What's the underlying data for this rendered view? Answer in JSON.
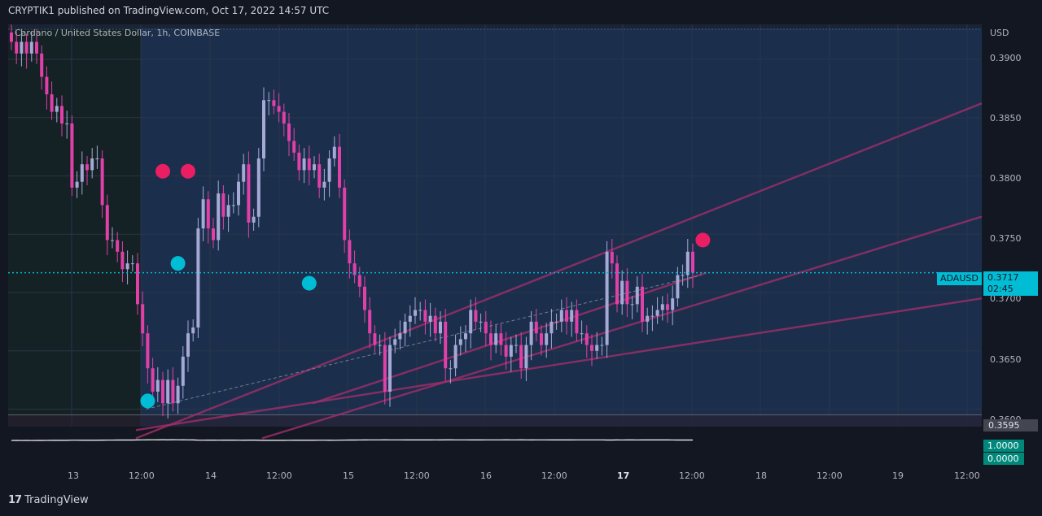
{
  "header": {
    "publisher": "CRYPTIK1 published on TradingView.com, Oct 17, 2022 14:57 UTC"
  },
  "symbol": {
    "label": "Cardano / United States Dollar, 1h, COINBASE"
  },
  "axis": {
    "currency": "USD",
    "y_ticks": [
      "0.3900",
      "0.3850",
      "0.3800",
      "0.3750",
      "0.3700",
      "0.3650",
      "0.3600"
    ],
    "x_ticks": [
      "13",
      "12:00",
      "14",
      "12:00",
      "15",
      "12:00",
      "16",
      "12:00",
      "17",
      "12:00",
      "18",
      "12:00",
      "19",
      "12:00"
    ]
  },
  "tags": {
    "ticker": "ADAUSD",
    "last_price": "0.3717",
    "countdown": "02:45",
    "low_price": "0.3595",
    "osc_high": "1.0000",
    "osc_low": "0.0000"
  },
  "footer": {
    "brand": "TradingView",
    "logo_glyph": "17"
  },
  "colors": {
    "up": "#a6a9d6",
    "down": "#e040a8",
    "trendline": "#a12e6a",
    "cyan": "#00bcd4",
    "signal_red": "#e91e63"
  },
  "chart_data": {
    "type": "candlestick",
    "title": "Cardano / United States Dollar, 1h, COINBASE",
    "ylabel": "USD",
    "ylim": [
      0.3585,
      0.393
    ],
    "current_price": 0.3717,
    "range_low": 0.3595,
    "closes": [
      0.3915,
      0.3905,
      0.3915,
      0.3905,
      0.3915,
      0.3905,
      0.3885,
      0.387,
      0.3855,
      0.386,
      0.3845,
      0.3845,
      0.379,
      0.3795,
      0.381,
      0.3805,
      0.3815,
      0.3815,
      0.3775,
      0.3745,
      0.3745,
      0.3735,
      0.372,
      0.3725,
      0.3725,
      0.369,
      0.3665,
      0.3635,
      0.3615,
      0.3625,
      0.3605,
      0.3625,
      0.3605,
      0.362,
      0.3645,
      0.3665,
      0.367,
      0.3755,
      0.378,
      0.3755,
      0.3745,
      0.3785,
      0.3765,
      0.3775,
      0.3775,
      0.3795,
      0.381,
      0.376,
      0.3765,
      0.3815,
      0.3865,
      0.3865,
      0.386,
      0.3855,
      0.3845,
      0.383,
      0.382,
      0.3805,
      0.3815,
      0.3805,
      0.381,
      0.379,
      0.3795,
      0.3815,
      0.3825,
      0.379,
      0.3745,
      0.3725,
      0.3715,
      0.3705,
      0.3685,
      0.3665,
      0.3655,
      0.3655,
      0.3615,
      0.3655,
      0.366,
      0.3665,
      0.3675,
      0.368,
      0.3685,
      0.3685,
      0.3675,
      0.368,
      0.3665,
      0.3675,
      0.3635,
      0.3635,
      0.3655,
      0.366,
      0.3665,
      0.3685,
      0.3675,
      0.3675,
      0.3665,
      0.3655,
      0.3665,
      0.3655,
      0.3645,
      0.3655,
      0.3655,
      0.3635,
      0.3655,
      0.3675,
      0.3665,
      0.3655,
      0.3665,
      0.3675,
      0.3675,
      0.3685,
      0.3675,
      0.3685,
      0.3665,
      0.3665,
      0.3655,
      0.365,
      0.3655,
      0.3655,
      0.3735,
      0.3725,
      0.369,
      0.371,
      0.369,
      0.369,
      0.3705,
      0.3675,
      0.368,
      0.368,
      0.3685,
      0.369,
      0.3685,
      0.3695,
      0.3715,
      0.3715,
      0.3735,
      0.3717
    ],
    "signals": [
      {
        "type": "sell",
        "price": 0.3804
      },
      {
        "type": "sell",
        "price": 0.3804
      },
      {
        "type": "buy",
        "price": 0.3725
      },
      {
        "type": "buy",
        "price": 0.3607
      },
      {
        "type": "buy",
        "price": 0.3708
      },
      {
        "type": "sell",
        "price": 0.3745
      }
    ],
    "oscillator": {
      "ylim": [
        0,
        1
      ]
    }
  }
}
